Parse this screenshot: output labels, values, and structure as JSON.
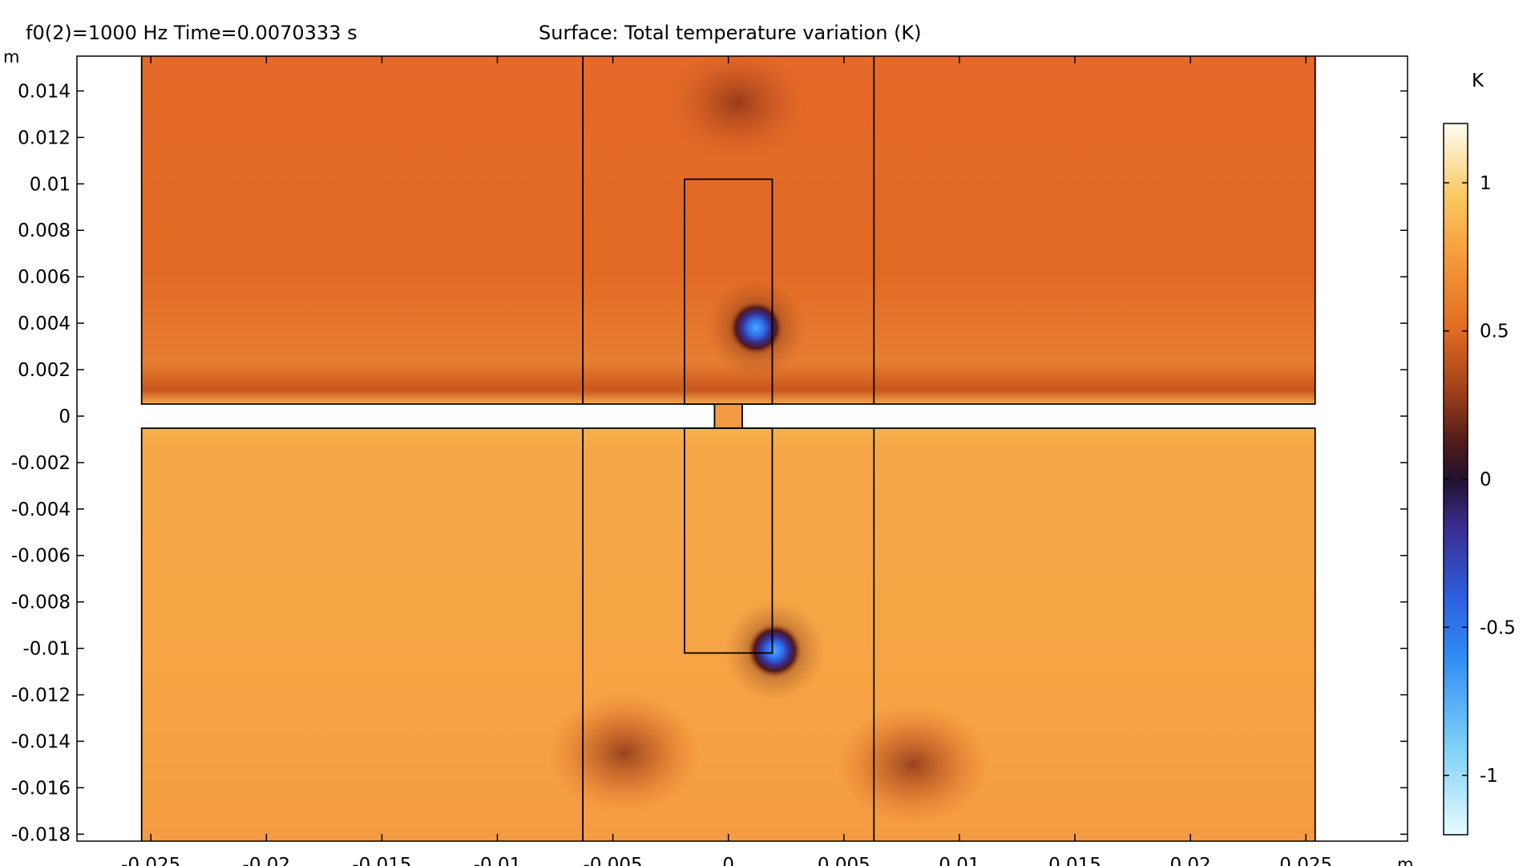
{
  "header": {
    "parameters": "f0(2)=1000 Hz Time=0.0070333 s",
    "plot_title": "Surface: Total temperature variation (K)"
  },
  "chart_data": {
    "type": "heatmap",
    "title": "Surface: Total temperature variation (K)",
    "xlabel": "m",
    "ylabel": "m",
    "xlim": [
      -0.0282,
      0.0294
    ],
    "ylim": [
      -0.0183,
      0.0155
    ],
    "x_ticks": [
      -0.025,
      -0.02,
      -0.015,
      -0.01,
      -0.005,
      0,
      0.005,
      0.01,
      0.015,
      0.02,
      0.025
    ],
    "x_tick_labels": [
      "-0.025",
      "-0.02",
      "-0.015",
      "-0.01",
      "-0.005",
      "0",
      "0.005",
      "0.01",
      "0.015",
      "0.02",
      "0.025"
    ],
    "y_ticks": [
      0.014,
      0.012,
      0.01,
      0.008,
      0.006,
      0.004,
      0.002,
      0,
      -0.002,
      -0.004,
      -0.006,
      -0.008,
      -0.01,
      -0.012,
      -0.014,
      -0.016,
      -0.018
    ],
    "y_tick_labels": [
      "0.014",
      "0.012",
      "0.01",
      "0.008",
      "0.006",
      "0.004",
      "0.002",
      "0",
      "-0.002",
      "-0.004",
      "-0.006",
      "-0.008",
      "-0.01",
      "-0.012",
      "-0.014",
      "-0.016",
      "-0.018"
    ],
    "grid": false,
    "colorbar": {
      "unit": "K",
      "range": [
        -1.2,
        1.2
      ],
      "ticks": [
        1,
        0.5,
        0,
        -0.5,
        -1
      ],
      "tick_labels": [
        "1",
        "0.5",
        "0",
        "-0.5",
        "-1"
      ],
      "colormap": [
        {
          "value": 1.2,
          "color": "#fffdf3"
        },
        {
          "value": 0.95,
          "color": "#fcc760"
        },
        {
          "value": 0.75,
          "color": "#f59b3a"
        },
        {
          "value": 0.5,
          "color": "#e06a22"
        },
        {
          "value": 0.3,
          "color": "#a0401a"
        },
        {
          "value": 0.12,
          "color": "#4e1a1a"
        },
        {
          "value": 0.0,
          "color": "#22122e"
        },
        {
          "value": -0.15,
          "color": "#3b2a8a"
        },
        {
          "value": -0.4,
          "color": "#2d5fe0"
        },
        {
          "value": -0.6,
          "color": "#2f8cf4"
        },
        {
          "value": -0.9,
          "color": "#7cd0f7"
        },
        {
          "value": -1.2,
          "color": "#e6fbff"
        }
      ]
    },
    "field": {
      "upper_region_value": 0.58,
      "lower_region_value": 0.78,
      "features": [
        {
          "label": "vortex",
          "x": 0.0012,
          "y": 0.0038,
          "value": -0.6
        },
        {
          "label": "vortex",
          "x": 0.002,
          "y": -0.0101,
          "value": -0.6
        },
        {
          "label": "warm patch",
          "x": 0.0004,
          "y": 0.0135,
          "value": 0.35
        },
        {
          "label": "warm patch",
          "x": -0.0045,
          "y": -0.0145,
          "value": 0.45
        },
        {
          "label": "warm patch",
          "x": 0.008,
          "y": -0.015,
          "value": 0.35
        }
      ]
    },
    "geometry": {
      "upper_chamber": {
        "x": [
          -0.0254,
          0.0254
        ],
        "y": [
          0.00052,
          0.0155
        ]
      },
      "lower_chamber": {
        "x": [
          -0.0254,
          0.0254
        ],
        "y": [
          -0.0183,
          -0.00052
        ]
      },
      "slit": {
        "x": [
          -0.0006,
          0.0006
        ],
        "y": [
          -0.00052,
          0.00052
        ]
      },
      "upper_block": {
        "x": [
          -0.0019,
          0.0019
        ],
        "y": [
          0.00052,
          0.0102
        ]
      },
      "lower_block": {
        "x": [
          -0.0019,
          0.0019
        ],
        "y": [
          -0.0102,
          -0.00052
        ]
      },
      "partition_lines_x": [
        -0.0063,
        0.0063
      ]
    }
  }
}
